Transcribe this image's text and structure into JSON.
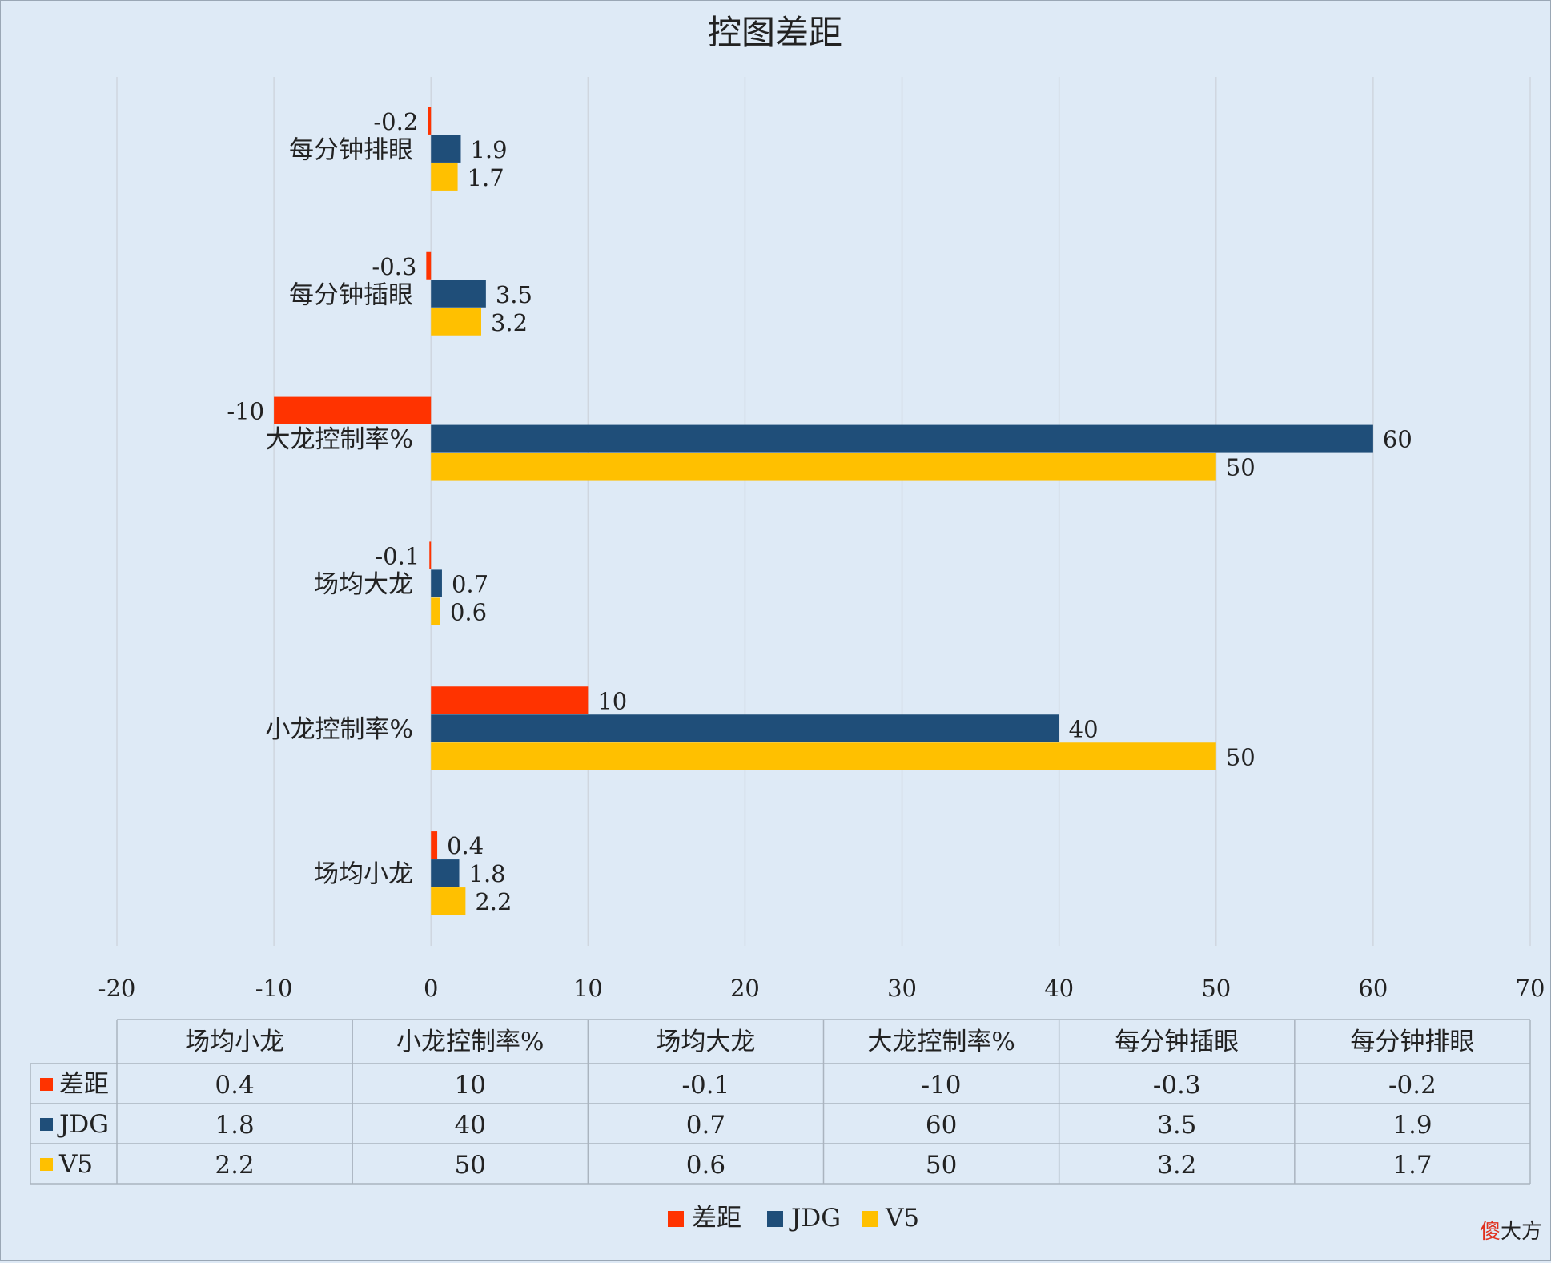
{
  "chart_data": {
    "type": "bar",
    "orientation": "horizontal",
    "title": "控图差距",
    "categories": [
      "场均小龙",
      "小龙控制率%",
      "场均大龙",
      "大龙控制率%",
      "每分钟插眼",
      "每分钟排眼"
    ],
    "categories_display": [
      "场均小龙",
      "小龙控制率%",
      "场均大龙",
      "大龙控制率%",
      "每分钟插眼",
      "每分钟排眼"
    ],
    "series": [
      {
        "name": "差距",
        "color": "#ff3300",
        "values": [
          0.4,
          10,
          -0.1,
          -10,
          -0.3,
          -0.2
        ]
      },
      {
        "name": "JDG",
        "color": "#1f4e79",
        "values": [
          1.8,
          40,
          0.7,
          60,
          3.5,
          1.9
        ]
      },
      {
        "name": "V5",
        "color": "#ffc000",
        "values": [
          2.2,
          50,
          0.6,
          50,
          3.2,
          1.7
        ]
      }
    ],
    "data_labels": [
      [
        "0.4",
        "10",
        "-0.1",
        "-10",
        "-0.3",
        "-0.2"
      ],
      [
        "1.8",
        "40",
        "0.7",
        "60",
        "3.5",
        "1.9"
      ],
      [
        "2.2",
        "50",
        "0.6",
        "50",
        "3.2",
        "1.7"
      ]
    ],
    "xlim": [
      -20,
      70
    ],
    "xticks": [
      -20,
      -10,
      0,
      10,
      20,
      30,
      40,
      50,
      60,
      70
    ],
    "xtick_labels": [
      "-20",
      "-10",
      "0",
      "10",
      "20",
      "30",
      "40",
      "50",
      "60",
      "70"
    ],
    "xlabel": "",
    "ylabel": "",
    "grid": true,
    "data_table": true,
    "legend_position": "bottom"
  },
  "watermark": "傻大方"
}
